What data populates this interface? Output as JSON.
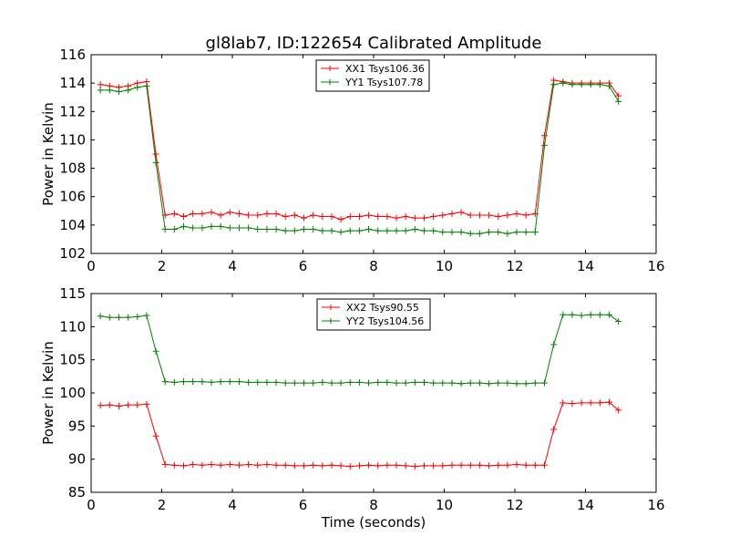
{
  "title": "gl8lab7, ID:122654 Calibrated Amplitude",
  "xlabel": "Time (seconds)",
  "chart_data": [
    {
      "type": "line",
      "title": "gl8lab7, ID:122654 Calibrated Amplitude",
      "xlabel": "",
      "ylabel": "Power in Kelvin",
      "xlim": [
        0,
        16
      ],
      "ylim": [
        102,
        116
      ],
      "xticks": [
        0,
        2,
        4,
        6,
        8,
        10,
        12,
        14,
        16
      ],
      "yticks": [
        102,
        104,
        106,
        108,
        110,
        112,
        114,
        116
      ],
      "grid": false,
      "legend_position": "top-center",
      "x": [
        0.262,
        0.524,
        0.786,
        1.048,
        1.31,
        1.572,
        1.834,
        2.096,
        2.358,
        2.62,
        2.882,
        3.144,
        3.406,
        3.668,
        3.93,
        4.192,
        4.454,
        4.716,
        4.978,
        5.24,
        5.502,
        5.764,
        6.026,
        6.288,
        6.55,
        6.812,
        7.074,
        7.336,
        7.598,
        7.86,
        8.122,
        8.384,
        8.646,
        8.908,
        9.17,
        9.432,
        9.694,
        9.956,
        10.218,
        10.48,
        10.742,
        11.004,
        11.266,
        11.528,
        11.79,
        12.052,
        12.314,
        12.576,
        12.838,
        13.1,
        13.362,
        13.624,
        13.886,
        14.148,
        14.41,
        14.672,
        14.934
      ],
      "series": [
        {
          "name": "XX1 Tsys106.36",
          "color": "#ff0000",
          "values": [
            113.9,
            113.8,
            113.7,
            113.8,
            114.0,
            114.1,
            109.0,
            104.7,
            104.8,
            104.6,
            104.8,
            104.8,
            104.9,
            104.7,
            104.9,
            104.8,
            104.7,
            104.7,
            104.8,
            104.8,
            104.6,
            104.7,
            104.5,
            104.7,
            104.6,
            104.6,
            104.4,
            104.6,
            104.6,
            104.7,
            104.6,
            104.6,
            104.5,
            104.6,
            104.5,
            104.5,
            104.6,
            104.7,
            104.8,
            104.9,
            104.7,
            104.7,
            104.7,
            104.6,
            104.7,
            104.8,
            104.7,
            104.8,
            110.3,
            114.2,
            114.1,
            114.0,
            114.0,
            114.0,
            114.0,
            114.0,
            113.1
          ]
        },
        {
          "name": "YY1 Tsys107.78",
          "color": "#008000",
          "values": [
            113.5,
            113.5,
            113.4,
            113.5,
            113.7,
            113.8,
            108.4,
            103.7,
            103.7,
            103.9,
            103.8,
            103.8,
            103.9,
            103.9,
            103.8,
            103.8,
            103.8,
            103.7,
            103.7,
            103.7,
            103.6,
            103.6,
            103.7,
            103.7,
            103.6,
            103.6,
            103.5,
            103.6,
            103.6,
            103.7,
            103.6,
            103.6,
            103.6,
            103.6,
            103.7,
            103.6,
            103.6,
            103.5,
            103.5,
            103.5,
            103.4,
            103.4,
            103.5,
            103.5,
            103.4,
            103.5,
            103.5,
            103.5,
            109.6,
            113.9,
            114.0,
            113.9,
            113.9,
            113.9,
            113.9,
            113.8,
            112.7
          ]
        }
      ]
    },
    {
      "type": "line",
      "title": "",
      "xlabel": "Time (seconds)",
      "ylabel": "Power in Kelvin",
      "xlim": [
        0,
        16
      ],
      "ylim": [
        85,
        115
      ],
      "xticks": [
        0,
        2,
        4,
        6,
        8,
        10,
        12,
        14,
        16
      ],
      "yticks": [
        85,
        90,
        95,
        100,
        105,
        110,
        115
      ],
      "grid": false,
      "legend_position": "top-center",
      "x": [
        0.262,
        0.524,
        0.786,
        1.048,
        1.31,
        1.572,
        1.834,
        2.096,
        2.358,
        2.62,
        2.882,
        3.144,
        3.406,
        3.668,
        3.93,
        4.192,
        4.454,
        4.716,
        4.978,
        5.24,
        5.502,
        5.764,
        6.026,
        6.288,
        6.55,
        6.812,
        7.074,
        7.336,
        7.598,
        7.86,
        8.122,
        8.384,
        8.646,
        8.908,
        9.17,
        9.432,
        9.694,
        9.956,
        10.218,
        10.48,
        10.742,
        11.004,
        11.266,
        11.528,
        11.79,
        12.052,
        12.314,
        12.576,
        12.838,
        13.1,
        13.362,
        13.624,
        13.886,
        14.148,
        14.41,
        14.672,
        14.934
      ],
      "series": [
        {
          "name": "XX2 Tsys90.55",
          "color": "#ff0000",
          "values": [
            98.1,
            98.2,
            98.0,
            98.2,
            98.2,
            98.3,
            93.5,
            89.2,
            89.1,
            89.0,
            89.2,
            89.1,
            89.2,
            89.1,
            89.2,
            89.1,
            89.2,
            89.1,
            89.2,
            89.1,
            89.1,
            89.0,
            89.0,
            89.1,
            89.0,
            89.1,
            89.0,
            88.9,
            89.0,
            89.1,
            89.0,
            89.1,
            89.1,
            89.0,
            88.9,
            89.0,
            89.0,
            89.0,
            89.1,
            89.1,
            89.1,
            89.1,
            89.0,
            89.1,
            89.1,
            89.2,
            89.1,
            89.1,
            89.1,
            94.5,
            98.5,
            98.4,
            98.5,
            98.5,
            98.5,
            98.6,
            97.4
          ]
        },
        {
          "name": "YY2 Tsys104.56",
          "color": "#008000",
          "values": [
            111.6,
            111.4,
            111.4,
            111.4,
            111.5,
            111.7,
            106.3,
            101.7,
            101.6,
            101.7,
            101.7,
            101.7,
            101.6,
            101.7,
            101.7,
            101.7,
            101.6,
            101.6,
            101.6,
            101.6,
            101.5,
            101.5,
            101.5,
            101.5,
            101.6,
            101.5,
            101.5,
            101.6,
            101.6,
            101.5,
            101.6,
            101.6,
            101.5,
            101.5,
            101.6,
            101.6,
            101.5,
            101.5,
            101.5,
            101.4,
            101.5,
            101.5,
            101.4,
            101.5,
            101.5,
            101.4,
            101.4,
            101.5,
            101.5,
            107.3,
            111.8,
            111.8,
            111.7,
            111.8,
            111.8,
            111.8,
            110.8
          ]
        }
      ]
    }
  ]
}
